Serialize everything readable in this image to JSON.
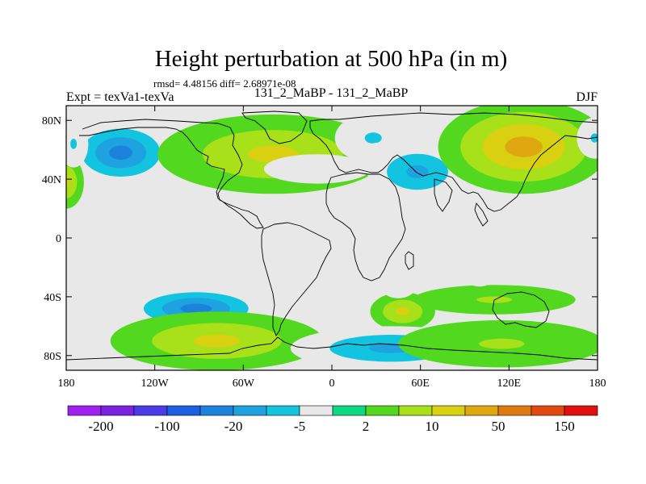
{
  "chart_data": {
    "type": "heatmap",
    "title": "Height perturbation at 500 hPa (in m)",
    "subtitle": "rmsd= 4.48156 diff= 2.68971e-08",
    "left_label": "Expt = texVa1-texVa",
    "center_label": "131_2_MaBP - 131_2_MaBP",
    "right_label": "DJF",
    "xlim": [
      -180,
      180
    ],
    "ylim": [
      -90,
      90
    ],
    "x_ticks": [
      {
        "value": -180,
        "label": "180"
      },
      {
        "value": -120,
        "label": "120W"
      },
      {
        "value": -60,
        "label": "60W"
      },
      {
        "value": 0,
        "label": "0"
      },
      {
        "value": 60,
        "label": "60E"
      },
      {
        "value": 120,
        "label": "120E"
      },
      {
        "value": 180,
        "label": "180"
      }
    ],
    "y_ticks": [
      {
        "value": 80,
        "label": "80N"
      },
      {
        "value": 40,
        "label": "40N"
      },
      {
        "value": 0,
        "label": "0"
      },
      {
        "value": -40,
        "label": "40S"
      },
      {
        "value": -80,
        "label": "80S"
      }
    ],
    "colorbar": {
      "levels": [
        -200,
        -150,
        -100,
        -50,
        -20,
        -10,
        -5,
        -2,
        2,
        5,
        10,
        20,
        50,
        100,
        150,
        200
      ],
      "labels": [
        {
          "boundary": 1,
          "text": "-200"
        },
        {
          "boundary": 3,
          "text": "-100"
        },
        {
          "boundary": 5,
          "text": "-20"
        },
        {
          "boundary": 7,
          "text": "-5"
        },
        {
          "boundary": 9,
          "text": "2"
        },
        {
          "boundary": 11,
          "text": "10"
        },
        {
          "boundary": 13,
          "text": "50"
        },
        {
          "boundary": 15,
          "text": "150"
        }
      ],
      "colors": [
        "#a020f0",
        "#7a22e0",
        "#4b3be6",
        "#1c5fe0",
        "#1c82dc",
        "#1ea2e0",
        "#12c4e0",
        "#e8e8e8",
        "#10d882",
        "#52d81e",
        "#a8e01a",
        "#d8d010",
        "#e0a810",
        "#e07a10",
        "#e04a10",
        "#e01010"
      ]
    },
    "anomalies": [
      {
        "lon": -143,
        "lat": 58,
        "rlon": 36,
        "rlat": 22,
        "level": -32
      },
      {
        "lon": -180,
        "lat": 38,
        "rlon": 12,
        "rlat": 18,
        "level": 14
      },
      {
        "lon": -175,
        "lat": 64,
        "rlon": 10,
        "rlat": 16,
        "level": -6
      },
      {
        "lon": -40,
        "lat": 57,
        "rlon": 78,
        "rlat": 27,
        "level": 16
      },
      {
        "lon": -10,
        "lat": 47,
        "rlon": 36,
        "rlat": 10,
        "level": -4
      },
      {
        "lon": 28,
        "lat": 68,
        "rlon": 26,
        "rlat": 17,
        "level": -5
      },
      {
        "lon": 33,
        "lat": 56,
        "rlon": 15,
        "rlat": 9,
        "level": -2
      },
      {
        "lon": 88,
        "lat": 87,
        "rlon": 26,
        "rlat": 8,
        "level": -3
      },
      {
        "lon": 58,
        "lat": 45,
        "rlon": 34,
        "rlat": 20,
        "level": -15
      },
      {
        "lon": 130,
        "lat": 62,
        "rlon": 58,
        "rlat": 32,
        "level": 20
      },
      {
        "lon": 178,
        "lat": 68,
        "rlon": 12,
        "rlat": 14,
        "level": -6
      },
      {
        "lon": -92,
        "lat": -48,
        "rlon": 48,
        "rlat": 15,
        "level": -28
      },
      {
        "lon": -78,
        "lat": -70,
        "rlon": 72,
        "rlat": 20,
        "level": 14
      },
      {
        "lon": -152,
        "lat": -32,
        "rlon": 3,
        "rlat": 3,
        "level": -4
      },
      {
        "lon": 48,
        "lat": -50,
        "rlon": 22,
        "rlat": 13,
        "level": 10
      },
      {
        "lon": 45,
        "lat": -33,
        "rlon": 12,
        "rlat": 8,
        "level": -4
      },
      {
        "lon": 40,
        "lat": -75,
        "rlon": 68,
        "rlat": 15,
        "level": -14
      },
      {
        "lon": 110,
        "lat": -42,
        "rlon": 55,
        "rlat": 10,
        "level": 7
      },
      {
        "lon": 115,
        "lat": -72,
        "rlon": 70,
        "rlat": 16,
        "level": 9
      },
      {
        "lon": 100,
        "lat": -26,
        "rlon": 10,
        "rlat": 7,
        "level": -4
      }
    ]
  }
}
